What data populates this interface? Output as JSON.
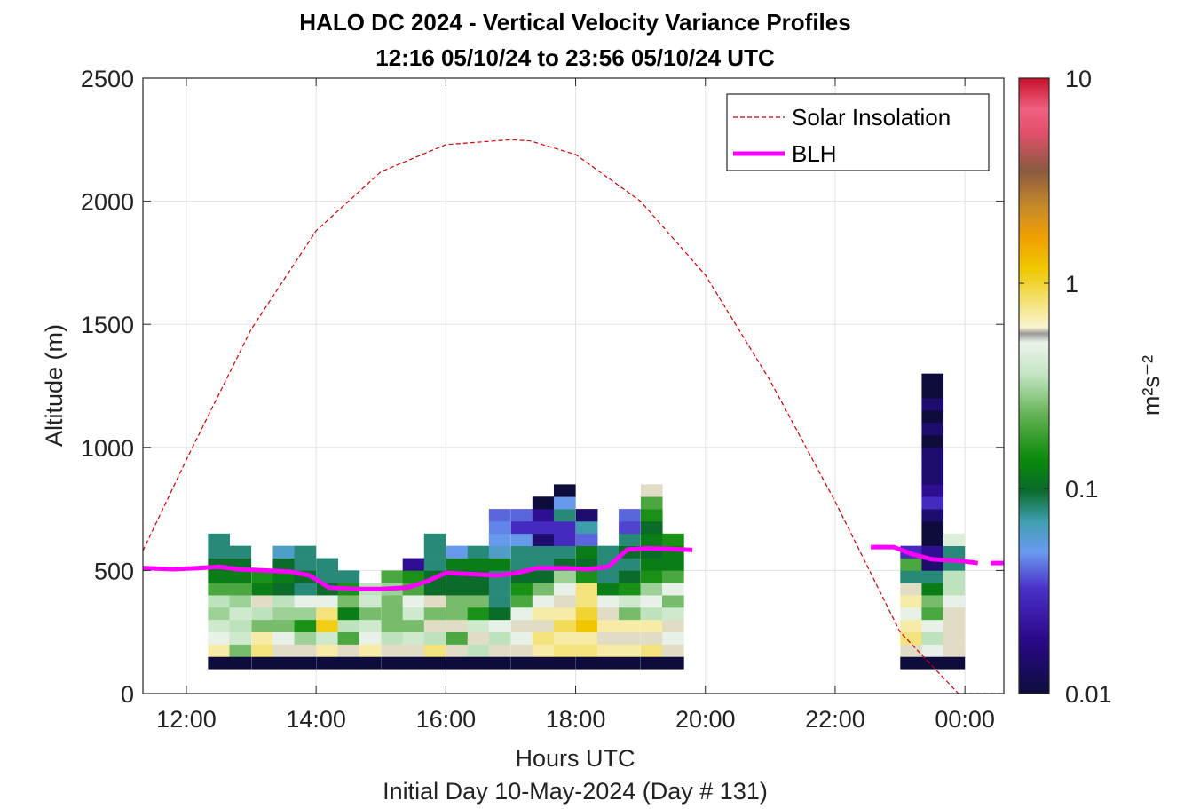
{
  "chart_data": {
    "type": "heatmap",
    "title": "HALO DC 2024 - Vertical Velocity Variance Profiles",
    "subtitle": "12:16 05/10/24 to 23:56 05/10/24  UTC",
    "xlabel": "Hours UTC",
    "xlabel2": "Initial Day 10-May-2024 (Day # 131)",
    "ylabel": "Altitude (m)",
    "xlim": [
      11.33,
      24.6
    ],
    "ylim": [
      0,
      2500
    ],
    "x_ticks": [
      12,
      14,
      16,
      18,
      20,
      22,
      24
    ],
    "x_tick_labels": [
      "12:00",
      "14:00",
      "16:00",
      "18:00",
      "20:00",
      "22:00",
      "00:00"
    ],
    "y_ticks": [
      0,
      500,
      1000,
      1500,
      2000,
      2500
    ],
    "y_tick_labels": [
      "0",
      "500",
      "1000",
      "1500",
      "2000",
      "2500"
    ],
    "grid": true,
    "legend_position": "top-right",
    "colorbar": {
      "label": "m²s⁻²",
      "scale": "log",
      "range": [
        0.01,
        10
      ],
      "ticks": [
        0.01,
        0.1,
        1,
        10
      ],
      "tick_labels": [
        "0.01",
        "0.1",
        "1",
        "10"
      ]
    },
    "cell_width_hours": 0.333,
    "cell_height_m": 50,
    "variance_columns": [
      {
        "t": 12.5,
        "v": [
          0.01,
          0.7,
          0.5,
          0.4,
          0.3,
          0.35,
          0.2,
          0.12,
          0.1,
          0.08,
          0.08
        ]
      },
      {
        "t": 12.83,
        "v": [
          0.01,
          0.25,
          0.4,
          0.35,
          0.4,
          0.3,
          0.2,
          0.12,
          0.1,
          0.08
        ]
      },
      {
        "t": 13.17,
        "v": [
          0.01,
          0.8,
          0.7,
          0.25,
          0.35,
          0.6,
          0.12,
          0.15
        ]
      },
      {
        "t": 13.5,
        "v": [
          0.01,
          0.6,
          0.5,
          0.25,
          0.3,
          0.35,
          0.1,
          0.12,
          0.1,
          0.06
        ]
      },
      {
        "t": 13.83,
        "v": [
          0.01,
          0.6,
          0.3,
          0.15,
          0.3,
          0.5,
          0.08,
          0.1,
          0.08,
          0.08
        ]
      },
      {
        "t": 14.17,
        "v": [
          0.01,
          0.7,
          0.4,
          1.1,
          0.8,
          0.5,
          0.1,
          0.08,
          0.08
        ]
      },
      {
        "t": 14.5,
        "v": [
          0.01,
          0.6,
          0.2,
          0.35,
          0.12,
          0.25,
          0.15,
          0.08
        ]
      },
      {
        "t": 14.83,
        "v": [
          0.01,
          0.7,
          0.5,
          0.4,
          0.25,
          0.4,
          0.35
        ]
      },
      {
        "t": 15.17,
        "v": [
          0.01,
          0.6,
          0.35,
          0.25,
          0.25,
          0.25,
          0.3,
          0.2
        ]
      },
      {
        "t": 15.5,
        "v": [
          0.01,
          0.6,
          0.4,
          0.25,
          0.4,
          0.5,
          0.2,
          0.15,
          0.02
        ]
      },
      {
        "t": 15.83,
        "v": [
          0.01,
          0.8,
          0.35,
          0.6,
          0.25,
          0.6,
          0.1,
          0.1,
          0.08,
          0.08,
          0.08
        ]
      },
      {
        "t": 16.17,
        "v": [
          0.01,
          0.6,
          0.2,
          0.6,
          0.25,
          0.25,
          0.1,
          0.1,
          0.12,
          0.05
        ]
      },
      {
        "t": 16.5,
        "v": [
          0.01,
          0.35,
          0.6,
          0.4,
          0.15,
          0.25,
          0.1,
          0.1,
          0.12,
          0.08
        ]
      },
      {
        "t": 16.83,
        "v": [
          0.01,
          0.6,
          0.35,
          0.5,
          0.1,
          0.08,
          0.08,
          0.08,
          0.12,
          0.06,
          0.05,
          0.045,
          0.04
        ]
      },
      {
        "t": 17.17,
        "v": [
          0.01,
          0.6,
          0.5,
          0.6,
          0.5,
          0.2,
          0.15,
          0.1,
          0.08,
          0.08,
          0.05,
          0.03,
          0.04
        ]
      },
      {
        "t": 17.5,
        "v": [
          0.01,
          0.7,
          0.8,
          0.6,
          0.7,
          0.5,
          0.25,
          0.1,
          0.08,
          0.08,
          0.015,
          0.03,
          0.02,
          0.01
        ]
      },
      {
        "t": 17.83,
        "v": [
          0.01,
          0.8,
          0.7,
          0.9,
          0.7,
          0.6,
          0.5,
          0.3,
          0.1,
          0.08,
          0.03,
          0.03,
          0.08,
          0.05,
          0.01
        ]
      },
      {
        "t": 18.17,
        "v": [
          0.01,
          0.8,
          0.7,
          1.2,
          1.0,
          0.8,
          0.8,
          0.15,
          0.1,
          0.12,
          0.04,
          0.07,
          0.015
        ]
      },
      {
        "t": 18.5,
        "v": [
          0.01,
          0.7,
          0.6,
          0.7,
          0.6,
          0.5,
          0.12,
          0.08,
          0.08,
          0.08
        ]
      },
      {
        "t": 18.83,
        "v": [
          0.01,
          0.7,
          0.6,
          0.7,
          0.25,
          0.4,
          0.15,
          0.1,
          0.08,
          0.1,
          0.08,
          0.035,
          0.04
        ]
      },
      {
        "t": 19.17,
        "v": [
          0.01,
          0.8,
          0.6,
          0.7,
          0.35,
          0.5,
          0.3,
          0.15,
          0.12,
          0.1,
          0.12,
          0.1,
          0.15,
          0.2,
          0.6
        ]
      },
      {
        "t": 19.5,
        "v": [
          0.01,
          0.6,
          0.5,
          0.6,
          0.4,
          0.25,
          0.5,
          0.2,
          0.12,
          0.12,
          0.15
        ]
      },
      {
        "t": 23.17,
        "v": [
          0.01,
          0.6,
          0.8,
          0.7,
          0.5,
          0.7,
          0.6,
          0.08,
          0.2,
          0.03
        ]
      },
      {
        "t": 23.5,
        "v": [
          0.01,
          0.5,
          0.35,
          0.5,
          0.2,
          0.25,
          0.12,
          0.08,
          0.015,
          0.02,
          0.01,
          0.01,
          0.015,
          0.03,
          0.02,
          0.015,
          0.015,
          0.015,
          0.01,
          0.015,
          0.01,
          0.015,
          0.01,
          0.01
        ]
      },
      {
        "t": 23.83,
        "v": [
          0.01,
          0.6,
          0.6,
          0.6,
          0.6,
          0.5,
          0.35,
          0.35,
          0.08,
          0.08,
          0.45
        ]
      }
    ],
    "series": [
      {
        "name": "Solar Insolation",
        "style": "dashed",
        "color": "#cc0000",
        "x": [
          11.33,
          12,
          13,
          14,
          15,
          16,
          17,
          17.3,
          18,
          19,
          20,
          21,
          22,
          23,
          23.9,
          24.6
        ],
        "y": [
          580,
          950,
          1480,
          1880,
          2120,
          2230,
          2250,
          2245,
          2190,
          2000,
          1700,
          1270,
          780,
          250,
          0,
          0
        ]
      },
      {
        "name": "BLH",
        "style": "solid",
        "color": "#ff00ff",
        "segments": [
          {
            "x": [
              11.33,
              11.8,
              12.2,
              12.5,
              12.8,
              13.2,
              13.6,
              13.9,
              14.2,
              14.6,
              15.0,
              15.4,
              15.7,
              16.0,
              16.4,
              16.8,
              17.1,
              17.4,
              17.8,
              18.2,
              18.5,
              18.8,
              19.1,
              19.4,
              19.8
            ],
            "y": [
              510,
              505,
              510,
              515,
              505,
              500,
              495,
              480,
              430,
              425,
              425,
              430,
              455,
              490,
              485,
              480,
              490,
              510,
              510,
              505,
              515,
              585,
              590,
              588,
              583
            ]
          },
          {
            "x": [
              22.55,
              22.9,
              23.2,
              23.5,
              23.9,
              24.2
            ],
            "y": [
              595,
              595,
              565,
              545,
              540,
              530
            ]
          },
          {
            "x": [
              24.4,
              24.6
            ],
            "y": [
              530,
              530
            ]
          }
        ]
      }
    ]
  }
}
